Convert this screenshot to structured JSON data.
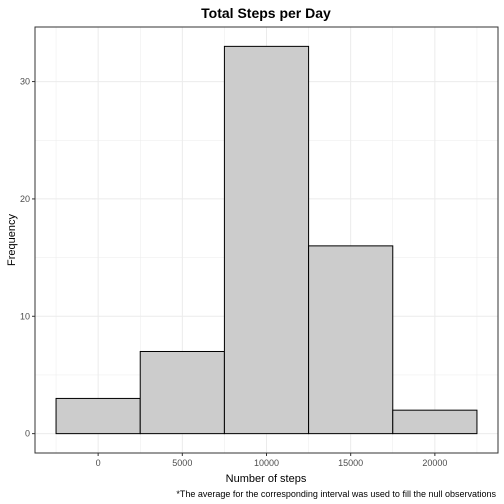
{
  "chart_data": {
    "type": "bar",
    "title": "Total Steps per Day",
    "xlabel": "Number of steps",
    "ylabel": "Frequency",
    "caption": "*The average for the corresponding interval was used to fill the null observations",
    "bins": [
      {
        "from": -2500,
        "to": 2500,
        "count": 3
      },
      {
        "from": 2500,
        "to": 7500,
        "count": 7
      },
      {
        "from": 7500,
        "to": 12500,
        "count": 33
      },
      {
        "from": 12500,
        "to": 17500,
        "count": 16
      },
      {
        "from": 17500,
        "to": 22500,
        "count": 2
      }
    ],
    "x_ticks": [
      0,
      5000,
      10000,
      15000,
      20000
    ],
    "x_tick_labels": [
      "0",
      "5000",
      "10000",
      "15000",
      "20000"
    ],
    "y_ticks": [
      0,
      10,
      20,
      30
    ],
    "y_tick_labels": [
      "0",
      "10",
      "20",
      "30"
    ],
    "xlim": [
      -3750,
      23750
    ],
    "ylim": [
      -1.65,
      34.65
    ],
    "grid": true,
    "bar_fill": "#cccccc",
    "bar_stroke": "#000000",
    "grid_color": "#ebebeb",
    "panel_border": "#333333"
  }
}
